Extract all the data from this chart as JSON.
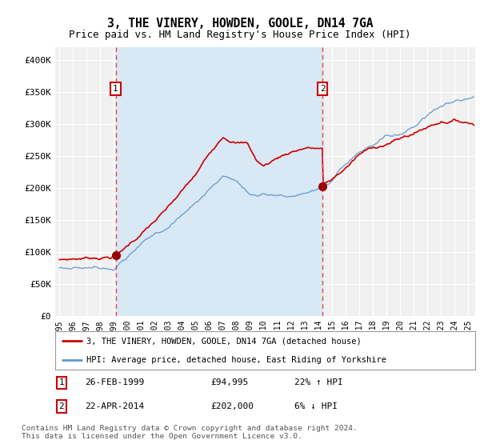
{
  "title": "3, THE VINERY, HOWDEN, GOOLE, DN14 7GA",
  "subtitle": "Price paid vs. HM Land Registry's House Price Index (HPI)",
  "ylabel_ticks": [
    "£0",
    "£50K",
    "£100K",
    "£150K",
    "£200K",
    "£250K",
    "£300K",
    "£350K",
    "£400K"
  ],
  "ytick_values": [
    0,
    50000,
    100000,
    150000,
    200000,
    250000,
    300000,
    350000,
    400000
  ],
  "ylim": [
    0,
    420000
  ],
  "xlim_start": 1994.7,
  "xlim_end": 2025.5,
  "x_ticks": [
    1995,
    1996,
    1997,
    1998,
    1999,
    2000,
    2001,
    2002,
    2003,
    2004,
    2005,
    2006,
    2007,
    2008,
    2009,
    2010,
    2011,
    2012,
    2013,
    2014,
    2015,
    2016,
    2017,
    2018,
    2019,
    2020,
    2021,
    2022,
    2023,
    2024,
    2025
  ],
  "sale1_x": 1999.13,
  "sale1_y": 94995,
  "sale1_label": "1",
  "sale1_date": "26-FEB-1999",
  "sale1_price": "£94,995",
  "sale1_hpi": "22% ↑ HPI",
  "sale2_x": 2014.3,
  "sale2_y": 202000,
  "sale2_label": "2",
  "sale2_date": "22-APR-2014",
  "sale2_price": "£202,000",
  "sale2_hpi": "6% ↓ HPI",
  "line1_color": "#cc0000",
  "line2_color": "#6699cc",
  "shade_color": "#d8e8f4",
  "plot_bg": "#f0f0f0",
  "grid_color": "#ffffff",
  "sale_marker_color": "#990000",
  "sale_box_color": "#cc0000",
  "vline_color": "#ee4444",
  "legend1_label": "3, THE VINERY, HOWDEN, GOOLE, DN14 7GA (detached house)",
  "legend2_label": "HPI: Average price, detached house, East Riding of Yorkshire",
  "footer": "Contains HM Land Registry data © Crown copyright and database right 2024.\nThis data is licensed under the Open Government Licence v3.0.",
  "title_fontsize": 10.5,
  "subtitle_fontsize": 9
}
